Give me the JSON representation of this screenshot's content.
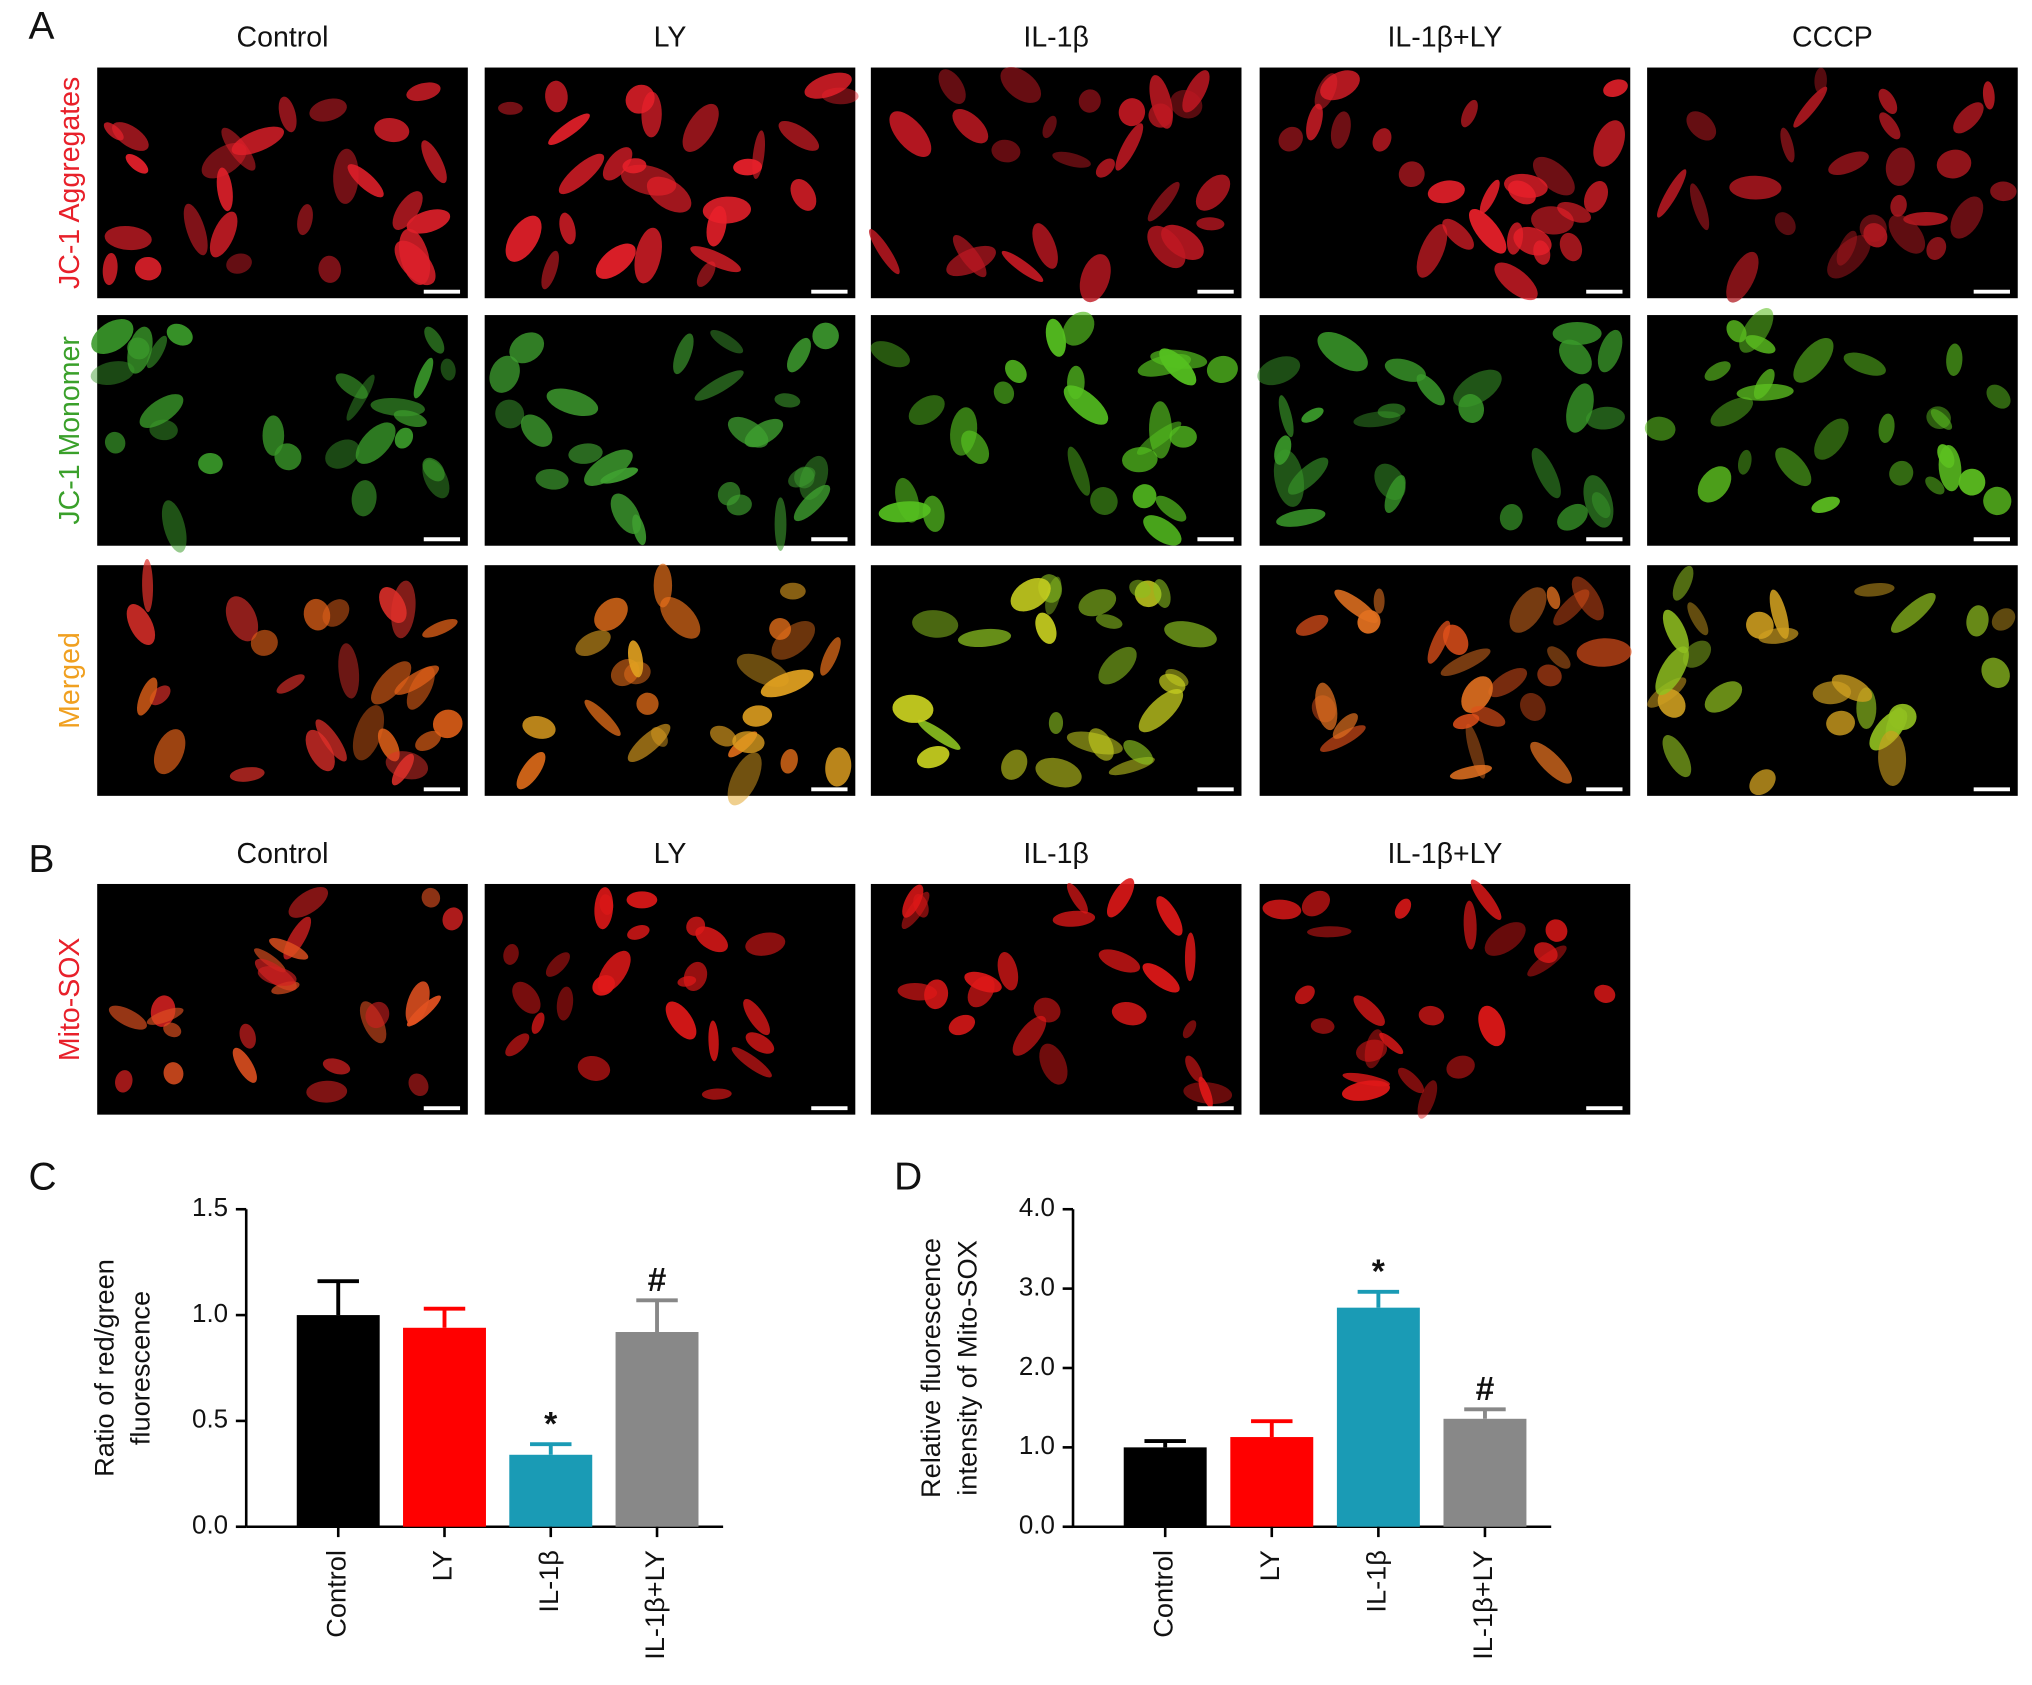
{
  "panels": {
    "A": {
      "label": "A",
      "columns": [
        "Control",
        "LY",
        "IL-1β",
        "IL-1β+LY",
        "CCCP"
      ],
      "rows": [
        "JC-1 Aggregates",
        "JC-1 Monomer",
        "Merged"
      ]
    },
    "B": {
      "label": "B",
      "columns": [
        "Control",
        "LY",
        "IL-1β",
        "IL-1β+LY"
      ],
      "rows": [
        "Mito-SOX"
      ]
    }
  },
  "chart_data": [
    {
      "type": "bar",
      "label": "C",
      "y_label": [
        "Ratio of red/green",
        "fluorescence"
      ],
      "categories": [
        "Control",
        "LY",
        "IL-1β",
        "IL-1β+LY"
      ],
      "values": [
        1.0,
        0.94,
        0.34,
        0.92
      ],
      "errors": [
        0.16,
        0.09,
        0.05,
        0.15
      ],
      "significance": [
        null,
        null,
        "*",
        "#"
      ],
      "colors": [
        "#000000",
        "#ff0000",
        "#1a9bb5",
        "#888888"
      ],
      "ylim": [
        0,
        1.5
      ],
      "yticks": [
        {
          "value": 0,
          "label": "0.0"
        },
        0.5,
        {
          "value": 1,
          "label": "1.0"
        },
        1.5
      ]
    },
    {
      "type": "bar",
      "label": "D",
      "y_label": [
        "Relative fluorescence",
        "intensity of Mito-SOX"
      ],
      "categories": [
        "Control",
        "LY",
        "IL-1β",
        "IL-1β+LY"
      ],
      "values": [
        1.0,
        1.13,
        2.76,
        1.36
      ],
      "errors": [
        0.08,
        0.2,
        0.2,
        0.12
      ],
      "significance": [
        null,
        null,
        "*",
        "#"
      ],
      "colors": [
        "#000000",
        "#ff0000",
        "#1a9bb5",
        "#888888"
      ],
      "ylim": [
        0,
        4
      ],
      "yticks": [
        {
          "value": 0,
          "label": "0.0"
        },
        {
          "value": 1,
          "label": "1.0"
        },
        {
          "value": 2,
          "label": "2.0"
        },
        {
          "value": 3,
          "label": "3.0"
        },
        {
          "value": 4,
          "label": "4.0"
        }
      ]
    }
  ]
}
